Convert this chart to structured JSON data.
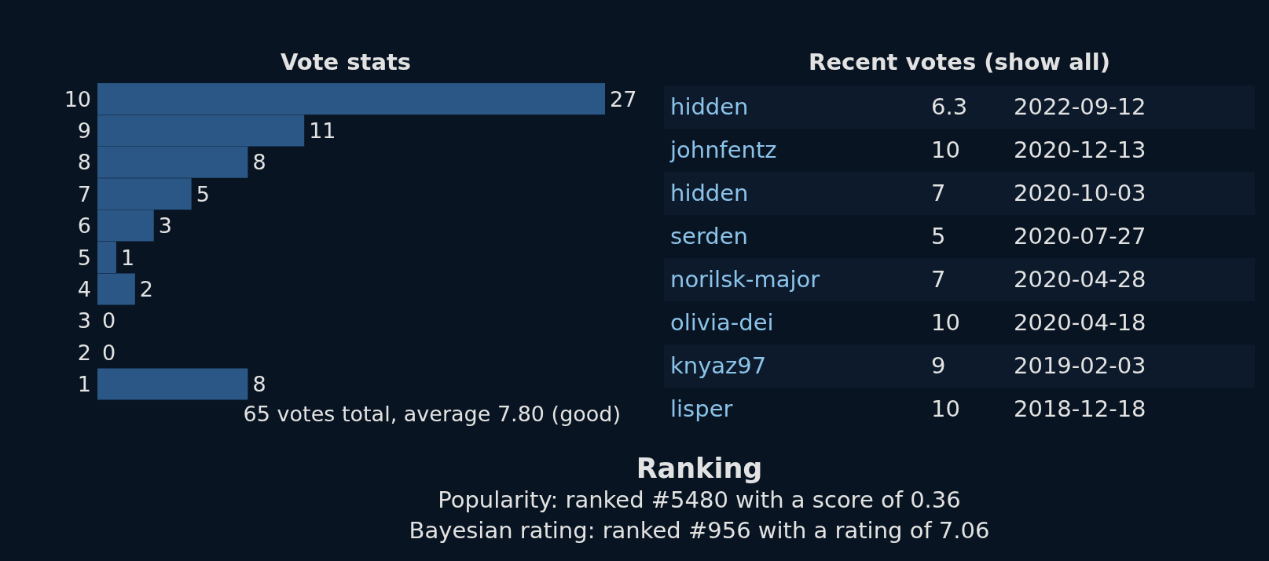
{
  "chart_data": [
    {
      "type": "bar",
      "orientation": "horizontal",
      "title": "Vote stats",
      "categories": [
        "10",
        "9",
        "8",
        "7",
        "6",
        "5",
        "4",
        "3",
        "2",
        "1"
      ],
      "values": [
        27,
        11,
        8,
        5,
        3,
        1,
        2,
        0,
        0,
        8
      ],
      "color": "#2b5787",
      "data_labels": true,
      "annotations": [
        "65 votes total, average 7.80 (good)"
      ]
    },
    {
      "type": "other",
      "title": "Recent votes (show all)",
      "annotations": [
        "hidden",
        "6.3",
        "2022-09-12",
        "johnfentz",
        "10",
        "2020-12-13",
        "hidden",
        "7",
        "2020-10-03",
        "serden",
        "5",
        "2020-07-27",
        "norilsk-major",
        "7",
        "2020-04-28",
        "olivia-dei",
        "10",
        "2020-04-18",
        "knyaz97",
        "9",
        "2019-02-03",
        "lisper",
        "10",
        "2018-12-18"
      ]
    },
    {
      "type": "other",
      "title": "Ranking",
      "annotations": [
        "Popularity: ranked #5480 with a score of 0.36",
        "Bayesian rating: ranked #956 with a rating of 7.06"
      ]
    }
  ]
}
